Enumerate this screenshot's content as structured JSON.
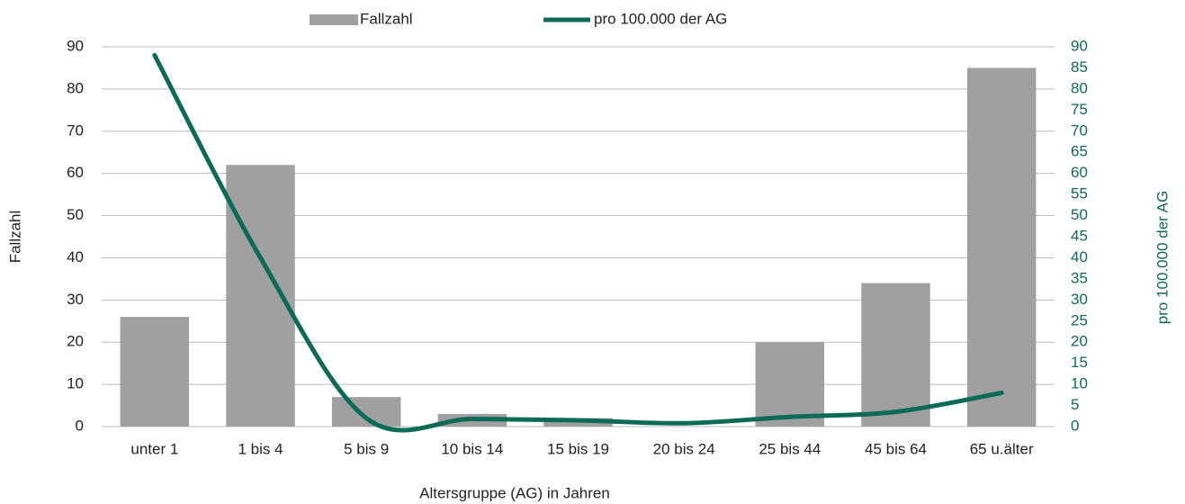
{
  "chart_data": {
    "type": "bar",
    "x_label": "Altersgruppe (AG) in Jahren",
    "y_label": "Fallzahl",
    "y2_label": "pro 100.000 der AG",
    "categories": [
      "unter 1",
      "1 bis 4",
      "5 bis 9",
      "10 bis 14",
      "15 bis 19",
      "20 bis 24",
      "25 bis 44",
      "45 bis 64",
      "65 u.älter"
    ],
    "series": [
      {
        "name": "Fallzahl",
        "type": "bar",
        "color": "#a0a0a0",
        "values": [
          26,
          62,
          7,
          3,
          2,
          0,
          20,
          34,
          85
        ]
      },
      {
        "name": "pro 100.000 der AG",
        "type": "line",
        "axis": "y2",
        "color": "#0b6b55",
        "values": [
          88,
          40,
          2,
          1.8,
          1.5,
          0.8,
          2.3,
          3.5,
          8
        ]
      }
    ],
    "ylim": [
      0,
      90
    ],
    "yticks": [
      0,
      10,
      20,
      30,
      40,
      50,
      60,
      70,
      80,
      90
    ],
    "y2lim": [
      0,
      90
    ],
    "y2ticks": [
      0,
      5,
      10,
      15,
      20,
      25,
      30,
      35,
      40,
      45,
      50,
      55,
      60,
      65,
      70,
      75,
      80,
      85,
      90
    ],
    "grid": true,
    "legend": "top"
  }
}
